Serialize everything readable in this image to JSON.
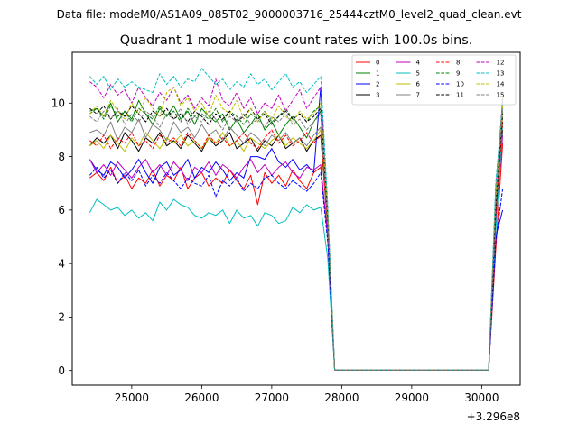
{
  "figure": {
    "suptitle": "Data file: modeM0/AS1A09_085T02_9000003716_25444cztM0_level2_quad_clean.evt"
  },
  "chart_data": {
    "type": "line",
    "title": "Quadrant 1 module wise count rates with 100.0s bins.",
    "xlabel": "",
    "ylabel": "",
    "x_offset_text": "+3.296e8",
    "xlim": [
      24150,
      30550
    ],
    "ylim": [
      -0.55,
      11.9
    ],
    "x_ticks": [
      25000,
      26000,
      27000,
      28000,
      29000,
      30000
    ],
    "x_tick_labels": [
      "25000",
      "26000",
      "27000",
      "28000",
      "29000",
      "30000"
    ],
    "y_ticks": [
      0,
      2,
      4,
      6,
      8,
      10
    ],
    "y_tick_labels": [
      "0",
      "2",
      "4",
      "6",
      "8",
      "10"
    ],
    "grid": false,
    "legend": {
      "placement": "top-right",
      "columns": 4
    },
    "x": [
      24400,
      24500,
      24600,
      24700,
      24800,
      24900,
      25000,
      25100,
      25200,
      25300,
      25400,
      25500,
      25600,
      25700,
      25800,
      25900,
      26000,
      26100,
      26200,
      26300,
      26400,
      26500,
      26600,
      26700,
      26800,
      26900,
      27000,
      27100,
      27200,
      27300,
      27400,
      27500,
      27600,
      27700,
      27800,
      27900,
      28000,
      28100,
      28200,
      28300,
      28400,
      28500,
      28600,
      28700,
      28800,
      28900,
      29000,
      29100,
      29200,
      29300,
      29400,
      29500,
      29600,
      29700,
      29800,
      29900,
      30000,
      30100,
      30200,
      30300
    ],
    "series": [
      {
        "name": "0",
        "color": "#ff0000",
        "dash": false,
        "values": [
          7.2,
          7.4,
          7.1,
          7.6,
          7.0,
          7.3,
          6.8,
          7.2,
          7.0,
          7.5,
          6.9,
          7.3,
          7.1,
          7.6,
          6.8,
          7.2,
          7.4,
          6.9,
          7.2,
          7.0,
          7.5,
          7.1,
          6.8,
          7.3,
          6.2,
          7.4,
          7.0,
          7.3,
          6.9,
          7.5,
          7.1,
          6.8,
          7.4,
          7.6,
          5.0,
          0.02,
          0.02,
          0.02,
          0.02,
          0.02,
          0.02,
          0.02,
          0.02,
          0.02,
          0.02,
          0.02,
          0.02,
          0.02,
          0.02,
          0.02,
          0.02,
          0.02,
          0.02,
          0.02,
          0.02,
          0.02,
          0.02,
          0.02,
          4.5,
          8.5
        ]
      },
      {
        "name": "1",
        "color": "#008000",
        "dash": false,
        "values": [
          9.7,
          9.8,
          9.5,
          10.0,
          9.3,
          9.7,
          9.4,
          10.1,
          9.6,
          9.2,
          9.8,
          9.5,
          9.9,
          9.4,
          9.7,
          9.2,
          9.8,
          9.5,
          9.3,
          9.6,
          9.0,
          9.4,
          8.9,
          9.2,
          9.6,
          9.0,
          9.3,
          8.8,
          9.2,
          9.5,
          9.1,
          8.7,
          9.3,
          9.7,
          5.5,
          0.02,
          0.02,
          0.02,
          0.02,
          0.02,
          0.02,
          0.02,
          0.02,
          0.02,
          0.02,
          0.02,
          0.02,
          0.02,
          0.02,
          0.02,
          0.02,
          0.02,
          0.02,
          0.02,
          0.02,
          0.02,
          0.02,
          0.02,
          6.0,
          10.2
        ]
      },
      {
        "name": "2",
        "color": "#0000ff",
        "dash": false,
        "values": [
          7.9,
          7.5,
          7.3,
          7.8,
          7.6,
          7.2,
          7.5,
          7.9,
          7.4,
          7.0,
          7.6,
          7.8,
          7.3,
          7.5,
          7.9,
          7.2,
          7.6,
          7.4,
          7.8,
          7.5,
          7.1,
          7.4,
          7.2,
          8.0,
          8.0,
          7.9,
          8.3,
          7.8,
          7.6,
          7.9,
          7.5,
          7.7,
          7.4,
          10.6,
          5.2,
          0.02,
          0.02,
          0.02,
          0.02,
          0.02,
          0.02,
          0.02,
          0.02,
          0.02,
          0.02,
          0.02,
          0.02,
          0.02,
          0.02,
          0.02,
          0.02,
          0.02,
          0.02,
          0.02,
          0.02,
          0.02,
          0.02,
          0.02,
          5.0,
          6.0
        ]
      },
      {
        "name": "3",
        "color": "#000000",
        "dash": false,
        "values": [
          8.4,
          8.7,
          8.5,
          8.8,
          8.3,
          8.9,
          8.6,
          8.2,
          8.7,
          8.5,
          8.9,
          8.4,
          8.6,
          8.3,
          8.8,
          8.5,
          8.2,
          8.7,
          8.4,
          8.6,
          8.9,
          8.3,
          8.5,
          8.7,
          8.2,
          8.6,
          8.4,
          8.8,
          8.3,
          8.5,
          8.7,
          8.2,
          8.6,
          8.8,
          5.3,
          0.02,
          0.02,
          0.02,
          0.02,
          0.02,
          0.02,
          0.02,
          0.02,
          0.02,
          0.02,
          0.02,
          0.02,
          0.02,
          0.02,
          0.02,
          0.02,
          0.02,
          0.02,
          0.02,
          0.02,
          0.02,
          0.02,
          0.02,
          5.5,
          9.0
        ]
      },
      {
        "name": "4",
        "color": "#bf00bf",
        "dash": false,
        "values": [
          7.9,
          7.4,
          7.7,
          7.3,
          7.8,
          7.5,
          7.2,
          7.6,
          7.9,
          7.4,
          7.7,
          7.3,
          7.8,
          7.5,
          7.1,
          7.6,
          7.4,
          7.8,
          7.3,
          7.7,
          7.5,
          7.2,
          7.6,
          7.9,
          7.4,
          7.7,
          7.3,
          7.6,
          7.8,
          7.4,
          7.2,
          7.6,
          7.5,
          7.7,
          5.0,
          0.02,
          0.02,
          0.02,
          0.02,
          0.02,
          0.02,
          0.02,
          0.02,
          0.02,
          0.02,
          0.02,
          0.02,
          0.02,
          0.02,
          0.02,
          0.02,
          0.02,
          0.02,
          0.02,
          0.02,
          0.02,
          0.02,
          0.02,
          5.5,
          8.8
        ]
      },
      {
        "name": "5",
        "color": "#00bfbf",
        "dash": false,
        "values": [
          5.9,
          6.4,
          6.2,
          6.0,
          6.1,
          5.8,
          6.0,
          5.7,
          5.9,
          5.6,
          6.3,
          6.0,
          6.4,
          6.2,
          6.1,
          5.8,
          5.7,
          5.9,
          5.8,
          6.0,
          5.5,
          6.0,
          5.7,
          5.8,
          5.4,
          5.9,
          5.8,
          5.5,
          5.6,
          6.1,
          5.9,
          6.2,
          6.0,
          6.1,
          4.2,
          0.02,
          0.02,
          0.02,
          0.02,
          0.02,
          0.02,
          0.02,
          0.02,
          0.02,
          0.02,
          0.02,
          0.02,
          0.02,
          0.02,
          0.02,
          0.02,
          0.02,
          0.02,
          0.02,
          0.02,
          0.02,
          0.02,
          0.02,
          5.2,
          9.2
        ]
      },
      {
        "name": "6",
        "color": "#bfbf00",
        "dash": false,
        "values": [
          8.4,
          8.6,
          8.3,
          8.8,
          8.5,
          8.2,
          8.7,
          8.4,
          8.9,
          8.6,
          8.3,
          8.7,
          8.5,
          8.8,
          8.4,
          8.6,
          8.3,
          8.7,
          8.5,
          8.9,
          8.4,
          8.6,
          8.2,
          8.7,
          8.5,
          8.3,
          8.6,
          8.8,
          8.4,
          8.7,
          8.5,
          8.3,
          8.6,
          9.0,
          5.4,
          0.02,
          0.02,
          0.02,
          0.02,
          0.02,
          0.02,
          0.02,
          0.02,
          0.02,
          0.02,
          0.02,
          0.02,
          0.02,
          0.02,
          0.02,
          0.02,
          0.02,
          0.02,
          0.02,
          0.02,
          0.02,
          0.02,
          0.02,
          6.2,
          9.5
        ]
      },
      {
        "name": "7",
        "color": "#808080",
        "dash": false,
        "values": [
          8.9,
          9.0,
          8.8,
          9.3,
          8.6,
          9.1,
          8.9,
          9.4,
          8.7,
          9.2,
          9.0,
          8.6,
          9.3,
          8.9,
          9.1,
          8.7,
          9.2,
          8.8,
          9.0,
          8.6,
          9.1,
          8.8,
          8.5,
          8.9,
          8.7,
          8.4,
          8.8,
          8.6,
          8.9,
          8.5,
          8.7,
          8.4,
          8.8,
          9.1,
          5.6,
          0.02,
          0.02,
          0.02,
          0.02,
          0.02,
          0.02,
          0.02,
          0.02,
          0.02,
          0.02,
          0.02,
          0.02,
          0.02,
          0.02,
          0.02,
          0.02,
          0.02,
          0.02,
          0.02,
          0.02,
          0.02,
          0.02,
          0.02,
          6.3,
          9.8
        ]
      },
      {
        "name": "8",
        "color": "#ff0000",
        "dash": true,
        "values": [
          8.6,
          8.4,
          8.8,
          8.3,
          8.7,
          8.5,
          8.9,
          8.4,
          8.6,
          8.3,
          8.8,
          8.5,
          8.7,
          8.4,
          8.9,
          8.6,
          8.3,
          8.8,
          8.5,
          8.7,
          8.4,
          8.6,
          8.9,
          8.5,
          8.3,
          8.7,
          9.0,
          8.5,
          8.8,
          8.4,
          8.6,
          8.9,
          8.5,
          8.8,
          5.5,
          0.02,
          0.02,
          0.02,
          0.02,
          0.02,
          0.02,
          0.02,
          0.02,
          0.02,
          0.02,
          0.02,
          0.02,
          0.02,
          0.02,
          0.02,
          0.02,
          0.02,
          0.02,
          0.02,
          0.02,
          0.02,
          0.02,
          0.02,
          5.8,
          9.3
        ]
      },
      {
        "name": "9",
        "color": "#008000",
        "dash": true,
        "values": [
          9.6,
          9.8,
          9.4,
          9.9,
          9.5,
          9.7,
          9.3,
          9.8,
          9.6,
          9.4,
          9.9,
          9.5,
          9.7,
          9.3,
          9.8,
          9.5,
          9.6,
          9.4,
          9.8,
          9.3,
          9.7,
          9.5,
          9.2,
          9.6,
          9.4,
          9.7,
          9.3,
          9.5,
          9.8,
          9.4,
          9.6,
          9.3,
          9.7,
          9.9,
          5.8,
          0.02,
          0.02,
          0.02,
          0.02,
          0.02,
          0.02,
          0.02,
          0.02,
          0.02,
          0.02,
          0.02,
          0.02,
          0.02,
          0.02,
          0.02,
          0.02,
          0.02,
          0.02,
          0.02,
          0.02,
          0.02,
          0.02,
          0.02,
          6.5,
          9.7
        ]
      },
      {
        "name": "10",
        "color": "#0000ff",
        "dash": true,
        "values": [
          7.3,
          7.6,
          7.2,
          7.5,
          7.0,
          7.4,
          7.1,
          7.5,
          6.9,
          7.3,
          7.0,
          7.4,
          7.1,
          6.8,
          7.2,
          7.0,
          6.9,
          7.3,
          6.5,
          7.1,
          6.9,
          7.2,
          6.7,
          7.0,
          6.8,
          7.2,
          7.3,
          7.0,
          6.8,
          7.1,
          6.9,
          6.7,
          7.0,
          7.4,
          4.8,
          0.02,
          0.02,
          0.02,
          0.02,
          0.02,
          0.02,
          0.02,
          0.02,
          0.02,
          0.02,
          0.02,
          0.02,
          0.02,
          0.02,
          0.02,
          0.02,
          0.02,
          0.02,
          0.02,
          0.02,
          0.02,
          0.02,
          0.02,
          4.8,
          6.8
        ]
      },
      {
        "name": "11",
        "color": "#000000",
        "dash": true,
        "values": [
          9.8,
          9.6,
          9.9,
          9.4,
          9.7,
          9.5,
          9.9,
          9.6,
          9.3,
          9.7,
          9.5,
          9.8,
          9.4,
          9.6,
          9.3,
          9.7,
          9.5,
          9.2,
          9.6,
          9.4,
          9.7,
          9.3,
          9.5,
          9.8,
          9.4,
          9.6,
          9.2,
          9.5,
          9.7,
          9.4,
          9.6,
          9.3,
          9.5,
          9.8,
          5.7,
          0.02,
          0.02,
          0.02,
          0.02,
          0.02,
          0.02,
          0.02,
          0.02,
          0.02,
          0.02,
          0.02,
          0.02,
          0.02,
          0.02,
          0.02,
          0.02,
          0.02,
          0.02,
          0.02,
          0.02,
          0.02,
          0.02,
          0.02,
          6.0,
          9.6
        ]
      },
      {
        "name": "12",
        "color": "#bf00bf",
        "dash": true,
        "values": [
          10.8,
          10.6,
          10.2,
          10.7,
          10.3,
          10.5,
          10.0,
          10.6,
          10.2,
          9.9,
          10.4,
          10.1,
          10.6,
          10.0,
          10.3,
          9.8,
          10.2,
          9.9,
          10.9,
          10.1,
          9.9,
          10.4,
          9.8,
          10.2,
          9.6,
          10.0,
          9.8,
          10.3,
          9.7,
          10.1,
          10.5,
          9.8,
          10.2,
          10.6,
          6.0,
          0.02,
          0.02,
          0.02,
          0.02,
          0.02,
          0.02,
          0.02,
          0.02,
          0.02,
          0.02,
          0.02,
          0.02,
          0.02,
          0.02,
          0.02,
          0.02,
          0.02,
          0.02,
          0.02,
          0.02,
          0.02,
          0.02,
          0.02,
          6.8,
          10.1
        ]
      },
      {
        "name": "13",
        "color": "#00bfbf",
        "dash": true,
        "values": [
          11.0,
          10.7,
          11.0,
          10.5,
          10.9,
          10.6,
          10.8,
          10.6,
          10.5,
          10.4,
          11.1,
          10.7,
          11.0,
          10.6,
          10.9,
          10.8,
          11.3,
          11.0,
          10.7,
          10.9,
          10.5,
          10.8,
          10.6,
          11.1,
          10.7,
          10.9,
          10.5,
          10.8,
          11.1,
          10.6,
          10.8,
          10.4,
          10.7,
          11.0,
          6.2,
          0.02,
          0.02,
          0.02,
          0.02,
          0.02,
          0.02,
          0.02,
          0.02,
          0.02,
          0.02,
          0.02,
          0.02,
          0.02,
          0.02,
          0.02,
          0.02,
          0.02,
          0.02,
          0.02,
          0.02,
          0.02,
          0.02,
          0.02,
          7.0,
          10.0
        ]
      },
      {
        "name": "14",
        "color": "#bfbf00",
        "dash": true,
        "values": [
          9.6,
          9.9,
          9.5,
          10.1,
          9.7,
          9.4,
          10.0,
          9.6,
          10.2,
          9.8,
          9.5,
          10.4,
          10.6,
          9.9,
          10.2,
          9.7,
          10.0,
          9.5,
          10.3,
          9.8,
          9.6,
          10.1,
          9.4,
          9.8,
          9.3,
          9.7,
          9.4,
          9.9,
          9.5,
          9.3,
          9.7,
          9.4,
          9.6,
          10.0,
          5.9,
          0.02,
          0.02,
          0.02,
          0.02,
          0.02,
          0.02,
          0.02,
          0.02,
          0.02,
          0.02,
          0.02,
          0.02,
          0.02,
          0.02,
          0.02,
          0.02,
          0.02,
          0.02,
          0.02,
          0.02,
          0.02,
          0.02,
          0.02,
          6.5,
          9.9
        ]
      },
      {
        "name": "15",
        "color": "#808080",
        "dash": true,
        "values": [
          9.5,
          9.3,
          9.7,
          9.4,
          9.8,
          9.2,
          9.6,
          9.3,
          9.7,
          9.5,
          9.1,
          9.6,
          9.4,
          9.8,
          9.2,
          9.5,
          9.3,
          9.7,
          9.4,
          9.0,
          9.5,
          9.3,
          9.6,
          9.2,
          9.4,
          9.1,
          9.5,
          9.3,
          9.6,
          9.2,
          9.4,
          9.0,
          9.3,
          9.6,
          5.6,
          0.02,
          0.02,
          0.02,
          0.02,
          0.02,
          0.02,
          0.02,
          0.02,
          0.02,
          0.02,
          0.02,
          0.02,
          0.02,
          0.02,
          0.02,
          0.02,
          0.02,
          0.02,
          0.02,
          0.02,
          0.02,
          0.02,
          0.02,
          6.2,
          9.8
        ]
      }
    ]
  }
}
